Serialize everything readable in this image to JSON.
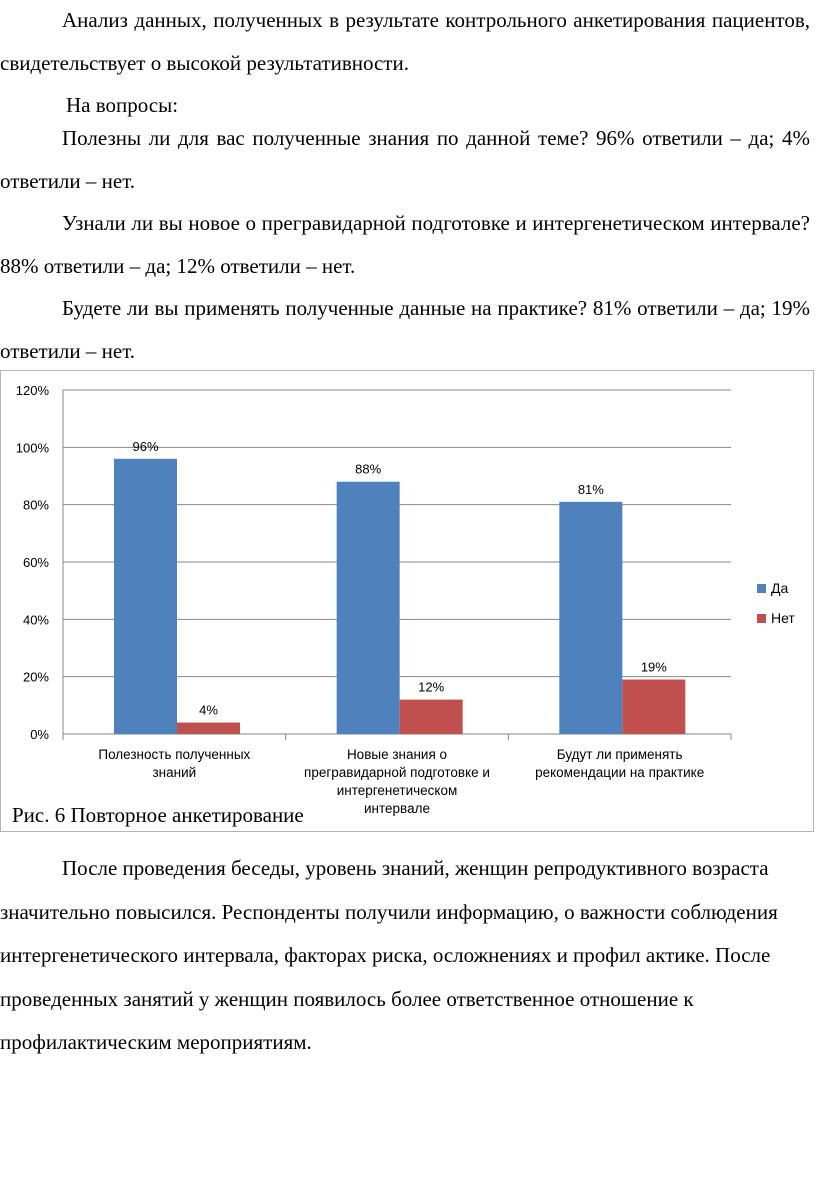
{
  "intro": {
    "p1": "Анализ данных, полученных в результате контрольного анкетирования пациентов, свидетельствует о высокой результативности.",
    "p2": "На вопросы:",
    "p3": "Полезны ли для вас полученные знания по данной теме? 96% ответили – да; 4% ответили – нет.",
    "p4": "Узнали ли вы новое о прегравидарной подготовке и интергенетическом интервале? 88% ответили – да; 12% ответили – нет.",
    "p5": "Будете ли вы применять полученные данные на практике? 81% ответили – да; 19% ответили – нет."
  },
  "figure_caption": "Рис. 6 Повторное анкетирование",
  "conclusion": "После проведения беседы, уровень знаний, женщин репродуктивного возраста значительно повысился. Респонденты получили информацию, о важности соблюдения интергенетического интервала, факторах риска, осложнениях и профил    актике. После проведенных занятий у женщин появилось более ответственное отношение к профилактическим мероприятиям.",
  "chart_data": {
    "type": "bar",
    "categories": [
      [
        "Полезность полученных",
        "знаний"
      ],
      [
        "Новые знания о",
        "прегравидарной подготовке и",
        "интергенетическом",
        "интервале"
      ],
      [
        "Будут ли применять",
        "рекомендации на практике"
      ]
    ],
    "series": [
      {
        "name": "Да",
        "values": [
          96,
          88,
          81
        ],
        "labels": [
          "96%",
          "88%",
          "81%"
        ],
        "color": "#4f81bd"
      },
      {
        "name": "Нет",
        "values": [
          4,
          12,
          19
        ],
        "labels": [
          "4%",
          "12%",
          "19%"
        ],
        "color": "#c0504d"
      }
    ],
    "yticks": [
      "0%",
      "20%",
      "40%",
      "60%",
      "80%",
      "100%",
      "120%"
    ],
    "ylim": [
      0,
      120
    ],
    "grid": true,
    "legend": "right",
    "title": "",
    "xlabel": "",
    "ylabel": ""
  }
}
